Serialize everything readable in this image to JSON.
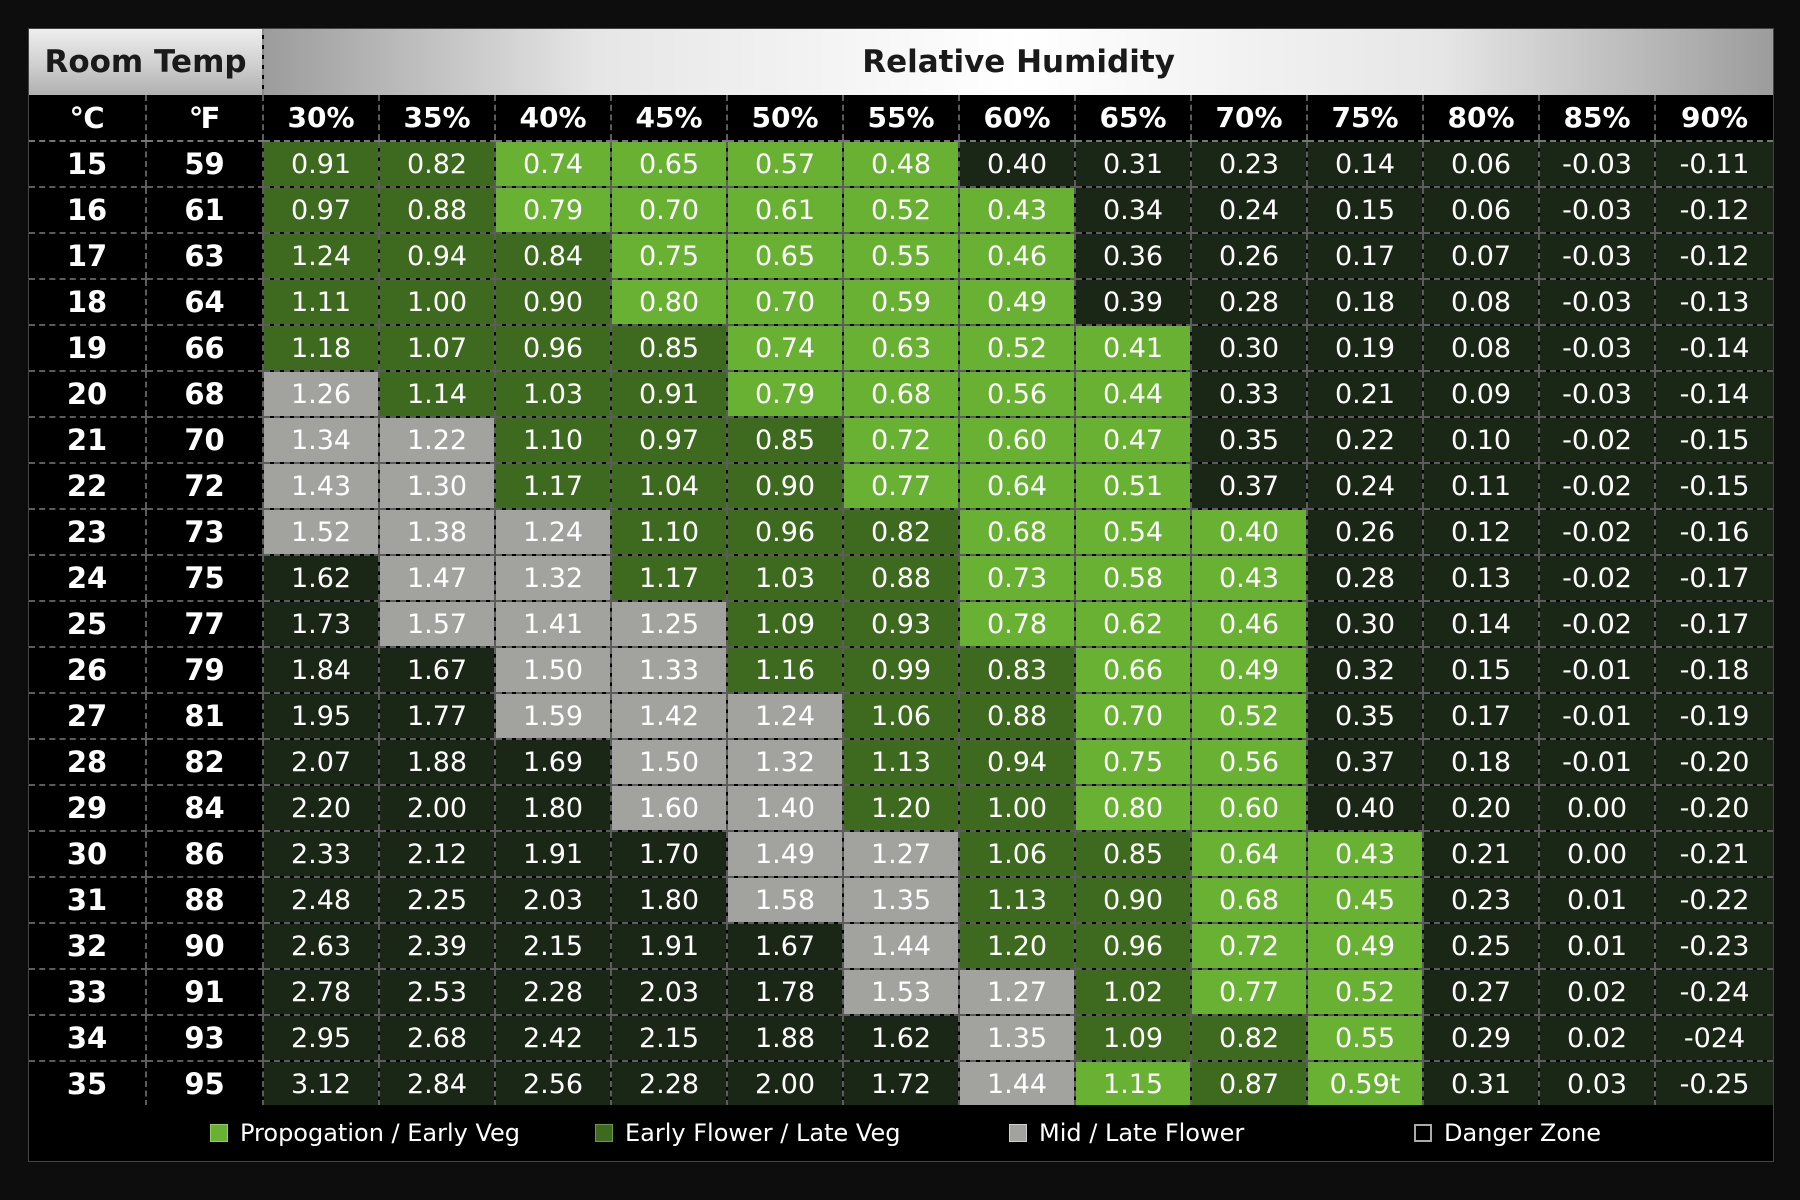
{
  "chart_data": {
    "type": "heatmap",
    "title_left": "Room Temp",
    "title_main": "Relative Humidity",
    "col_c_label": "℃",
    "col_f_label": "℉",
    "humidity_labels": [
      "30%",
      "35%",
      "40%",
      "45%",
      "50%",
      "55%",
      "60%",
      "65%",
      "70%",
      "75%",
      "80%",
      "85%",
      "90%"
    ],
    "rows": [
      {
        "c": "15",
        "f": "59",
        "values": [
          "0.91",
          "0.82",
          "0.74",
          "0.65",
          "0.57",
          "0.48",
          "0.40",
          "0.31",
          "0.23",
          "0.14",
          "0.06",
          "-0.03",
          "-0.11"
        ],
        "zones": [
          "early",
          "early",
          "prop",
          "prop",
          "prop",
          "prop",
          "danger",
          "danger",
          "danger",
          "danger",
          "danger",
          "danger",
          "danger"
        ]
      },
      {
        "c": "16",
        "f": "61",
        "values": [
          "0.97",
          "0.88",
          "0.79",
          "0.70",
          "0.61",
          "0.52",
          "0.43",
          "0.34",
          "0.24",
          "0.15",
          "0.06",
          "-0.03",
          "-0.12"
        ],
        "zones": [
          "early",
          "early",
          "prop",
          "prop",
          "prop",
          "prop",
          "prop",
          "danger",
          "danger",
          "danger",
          "danger",
          "danger",
          "danger"
        ]
      },
      {
        "c": "17",
        "f": "63",
        "values": [
          "1.24",
          "0.94",
          "0.84",
          "0.75",
          "0.65",
          "0.55",
          "0.46",
          "0.36",
          "0.26",
          "0.17",
          "0.07",
          "-0.03",
          "-0.12"
        ],
        "zones": [
          "early",
          "early",
          "early",
          "prop",
          "prop",
          "prop",
          "prop",
          "danger",
          "danger",
          "danger",
          "danger",
          "danger",
          "danger"
        ]
      },
      {
        "c": "18",
        "f": "64",
        "values": [
          "1.11",
          "1.00",
          "0.90",
          "0.80",
          "0.70",
          "0.59",
          "0.49",
          "0.39",
          "0.28",
          "0.18",
          "0.08",
          "-0.03",
          "-0.13"
        ],
        "zones": [
          "early",
          "early",
          "early",
          "prop",
          "prop",
          "prop",
          "prop",
          "danger",
          "danger",
          "danger",
          "danger",
          "danger",
          "danger"
        ]
      },
      {
        "c": "19",
        "f": "66",
        "values": [
          "1.18",
          "1.07",
          "0.96",
          "0.85",
          "0.74",
          "0.63",
          "0.52",
          "0.41",
          "0.30",
          "0.19",
          "0.08",
          "-0.03",
          "-0.14"
        ],
        "zones": [
          "early",
          "early",
          "early",
          "early",
          "prop",
          "prop",
          "prop",
          "prop",
          "danger",
          "danger",
          "danger",
          "danger",
          "danger"
        ]
      },
      {
        "c": "20",
        "f": "68",
        "values": [
          "1.26",
          "1.14",
          "1.03",
          "0.91",
          "0.79",
          "0.68",
          "0.56",
          "0.44",
          "0.33",
          "0.21",
          "0.09",
          "-0.03",
          "-0.14"
        ],
        "zones": [
          "mid",
          "early",
          "early",
          "early",
          "prop",
          "prop",
          "prop",
          "prop",
          "danger",
          "danger",
          "danger",
          "danger",
          "danger"
        ]
      },
      {
        "c": "21",
        "f": "70",
        "values": [
          "1.34",
          "1.22",
          "1.10",
          "0.97",
          "0.85",
          "0.72",
          "0.60",
          "0.47",
          "0.35",
          "0.22",
          "0.10",
          "-0.02",
          "-0.15"
        ],
        "zones": [
          "mid",
          "mid",
          "early",
          "early",
          "early",
          "prop",
          "prop",
          "prop",
          "danger",
          "danger",
          "danger",
          "danger",
          "danger"
        ]
      },
      {
        "c": "22",
        "f": "72",
        "values": [
          "1.43",
          "1.30",
          "1.17",
          "1.04",
          "0.90",
          "0.77",
          "0.64",
          "0.51",
          "0.37",
          "0.24",
          "0.11",
          "-0.02",
          "-0.15"
        ],
        "zones": [
          "mid",
          "mid",
          "early",
          "early",
          "early",
          "prop",
          "prop",
          "prop",
          "danger",
          "danger",
          "danger",
          "danger",
          "danger"
        ]
      },
      {
        "c": "23",
        "f": "73",
        "values": [
          "1.52",
          "1.38",
          "1.24",
          "1.10",
          "0.96",
          "0.82",
          "0.68",
          "0.54",
          "0.40",
          "0.26",
          "0.12",
          "-0.02",
          "-0.16"
        ],
        "zones": [
          "mid",
          "mid",
          "mid",
          "early",
          "early",
          "early",
          "prop",
          "prop",
          "prop",
          "danger",
          "danger",
          "danger",
          "danger"
        ]
      },
      {
        "c": "24",
        "f": "75",
        "values": [
          "1.62",
          "1.47",
          "1.32",
          "1.17",
          "1.03",
          "0.88",
          "0.73",
          "0.58",
          "0.43",
          "0.28",
          "0.13",
          "-0.02",
          "-0.17"
        ],
        "zones": [
          "danger",
          "mid",
          "mid",
          "early",
          "early",
          "early",
          "prop",
          "prop",
          "prop",
          "danger",
          "danger",
          "danger",
          "danger"
        ]
      },
      {
        "c": "25",
        "f": "77",
        "values": [
          "1.73",
          "1.57",
          "1.41",
          "1.25",
          "1.09",
          "0.93",
          "0.78",
          "0.62",
          "0.46",
          "0.30",
          "0.14",
          "-0.02",
          "-0.17"
        ],
        "zones": [
          "danger",
          "mid",
          "mid",
          "mid",
          "early",
          "early",
          "prop",
          "prop",
          "prop",
          "danger",
          "danger",
          "danger",
          "danger"
        ]
      },
      {
        "c": "26",
        "f": "79",
        "values": [
          "1.84",
          "1.67",
          "1.50",
          "1.33",
          "1.16",
          "0.99",
          "0.83",
          "0.66",
          "0.49",
          "0.32",
          "0.15",
          "-0.01",
          "-0.18"
        ],
        "zones": [
          "danger",
          "danger",
          "mid",
          "mid",
          "early",
          "early",
          "early",
          "prop",
          "prop",
          "danger",
          "danger",
          "danger",
          "danger"
        ]
      },
      {
        "c": "27",
        "f": "81",
        "values": [
          "1.95",
          "1.77",
          "1.59",
          "1.42",
          "1.24",
          "1.06",
          "0.88",
          "0.70",
          "0.52",
          "0.35",
          "0.17",
          "-0.01",
          "-0.19"
        ],
        "zones": [
          "danger",
          "danger",
          "mid",
          "mid",
          "mid",
          "early",
          "early",
          "prop",
          "prop",
          "danger",
          "danger",
          "danger",
          "danger"
        ]
      },
      {
        "c": "28",
        "f": "82",
        "values": [
          "2.07",
          "1.88",
          "1.69",
          "1.50",
          "1.32",
          "1.13",
          "0.94",
          "0.75",
          "0.56",
          "0.37",
          "0.18",
          "-0.01",
          "-0.20"
        ],
        "zones": [
          "danger",
          "danger",
          "danger",
          "mid",
          "mid",
          "early",
          "early",
          "prop",
          "prop",
          "danger",
          "danger",
          "danger",
          "danger"
        ]
      },
      {
        "c": "29",
        "f": "84",
        "values": [
          "2.20",
          "2.00",
          "1.80",
          "1.60",
          "1.40",
          "1.20",
          "1.00",
          "0.80",
          "0.60",
          "0.40",
          "0.20",
          "0.00",
          "-0.20"
        ],
        "zones": [
          "danger",
          "danger",
          "danger",
          "mid",
          "mid",
          "early",
          "early",
          "prop",
          "prop",
          "danger",
          "danger",
          "danger",
          "danger"
        ]
      },
      {
        "c": "30",
        "f": "86",
        "values": [
          "2.33",
          "2.12",
          "1.91",
          "1.70",
          "1.49",
          "1.27",
          "1.06",
          "0.85",
          "0.64",
          "0.43",
          "0.21",
          "0.00",
          "-0.21"
        ],
        "zones": [
          "danger",
          "danger",
          "danger",
          "danger",
          "mid",
          "mid",
          "early",
          "early",
          "prop",
          "prop",
          "danger",
          "danger",
          "danger"
        ]
      },
      {
        "c": "31",
        "f": "88",
        "values": [
          "2.48",
          "2.25",
          "2.03",
          "1.80",
          "1.58",
          "1.35",
          "1.13",
          "0.90",
          "0.68",
          "0.45",
          "0.23",
          "0.01",
          "-0.22"
        ],
        "zones": [
          "danger",
          "danger",
          "danger",
          "danger",
          "mid",
          "mid",
          "early",
          "early",
          "prop",
          "prop",
          "danger",
          "danger",
          "danger"
        ]
      },
      {
        "c": "32",
        "f": "90",
        "values": [
          "2.63",
          "2.39",
          "2.15",
          "1.91",
          "1.67",
          "1.44",
          "1.20",
          "0.96",
          "0.72",
          "0.49",
          "0.25",
          "0.01",
          "-0.23"
        ],
        "zones": [
          "danger",
          "danger",
          "danger",
          "danger",
          "danger",
          "mid",
          "early",
          "early",
          "prop",
          "prop",
          "danger",
          "danger",
          "danger"
        ]
      },
      {
        "c": "33",
        "f": "91",
        "values": [
          "2.78",
          "2.53",
          "2.28",
          "2.03",
          "1.78",
          "1.53",
          "1.27",
          "1.02",
          "0.77",
          "0.52",
          "0.27",
          "0.02",
          "-0.24"
        ],
        "zones": [
          "danger",
          "danger",
          "danger",
          "danger",
          "danger",
          "mid",
          "mid",
          "early",
          "prop",
          "prop",
          "danger",
          "danger",
          "danger"
        ]
      },
      {
        "c": "34",
        "f": "93",
        "values": [
          "2.95",
          "2.68",
          "2.42",
          "2.15",
          "1.88",
          "1.62",
          "1.35",
          "1.09",
          "0.82",
          "0.55",
          "0.29",
          "0.02",
          "-024"
        ],
        "zones": [
          "danger",
          "danger",
          "danger",
          "danger",
          "danger",
          "danger",
          "mid",
          "early",
          "early",
          "prop",
          "danger",
          "danger",
          "danger"
        ]
      },
      {
        "c": "35",
        "f": "95",
        "values": [
          "3.12",
          "2.84",
          "2.56",
          "2.28",
          "2.00",
          "1.72",
          "1.44",
          "1.15",
          "0.87",
          "0.59t",
          "0.31",
          "0.03",
          "-0.25"
        ],
        "zones": [
          "danger",
          "danger",
          "danger",
          "danger",
          "danger",
          "danger",
          "mid",
          "prop",
          "early",
          "prop",
          "danger",
          "danger",
          "danger"
        ]
      }
    ],
    "legend": [
      {
        "label": "Propogation / Early Veg",
        "zone": "prop"
      },
      {
        "label": "Early Flower / Late Veg",
        "zone": "early"
      },
      {
        "label": "Mid / Late Flower",
        "zone": "mid"
      },
      {
        "label": "Danger Zone",
        "zone": "danger"
      }
    ],
    "zone_colors": {
      "prop": "#68b132",
      "early": "#3d6a1e",
      "mid": "#a2a39f",
      "danger": "#1b2716"
    }
  }
}
